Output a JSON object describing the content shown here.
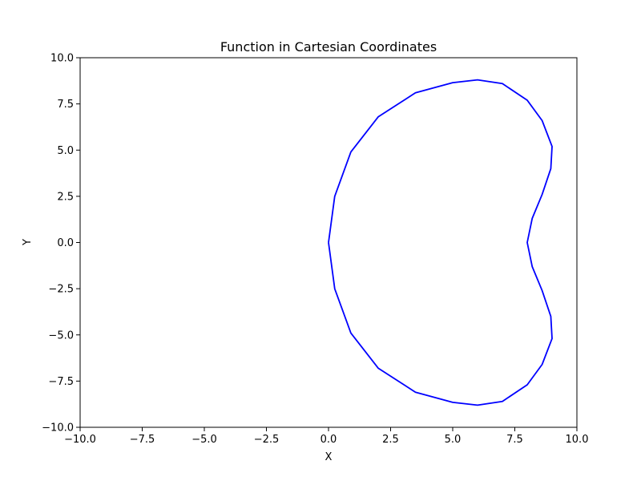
{
  "chart_data": {
    "type": "line",
    "title": "Function in Cartesian Coordinates",
    "xlabel": "X",
    "ylabel": "Y",
    "xlim": [
      -10,
      10
    ],
    "ylim": [
      -10,
      10
    ],
    "x_ticks": [
      "−10.0",
      "−7.5",
      "−5.0",
      "−2.5",
      "0.0",
      "2.5",
      "5.0",
      "7.5",
      "10.0"
    ],
    "y_ticks": [
      "−10.0",
      "−7.5",
      "−5.0",
      "−2.5",
      "0.0",
      "2.5",
      "5.0",
      "7.5",
      "10.0"
    ],
    "grid": false,
    "legend": "none",
    "series": [
      {
        "color": "#0000ff",
        "x": [
          0.0,
          0.25,
          0.9,
          2.0,
          3.5,
          5.0,
          6.0,
          7.0,
          8.0,
          8.6,
          9.0,
          8.95,
          8.6,
          8.2,
          8.0,
          8.2,
          8.6,
          8.95,
          9.0,
          8.6,
          8.0,
          7.0,
          6.0,
          5.0,
          3.5,
          2.0,
          0.9,
          0.25,
          0.0
        ],
        "y": [
          0.0,
          2.5,
          4.9,
          6.8,
          8.1,
          8.65,
          8.8,
          8.6,
          7.7,
          6.6,
          5.2,
          4.0,
          2.6,
          1.3,
          0.0,
          -1.3,
          -2.6,
          -4.0,
          -5.2,
          -6.6,
          -7.7,
          -8.6,
          -8.8,
          -8.65,
          -8.1,
          -6.8,
          -4.9,
          -2.5,
          0.0
        ]
      }
    ]
  }
}
